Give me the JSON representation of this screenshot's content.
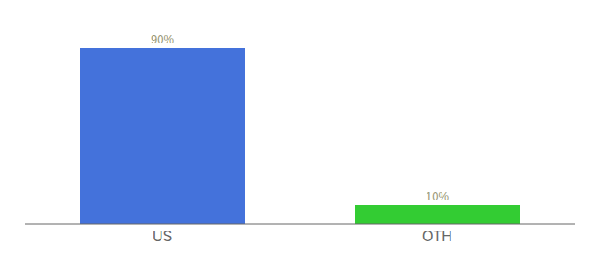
{
  "chart_data": {
    "type": "bar",
    "categories": [
      "US",
      "OTH"
    ],
    "values": [
      90,
      10
    ],
    "value_labels": [
      "90%",
      "10%"
    ],
    "colors": [
      "#4472db",
      "#33cc33"
    ],
    "data_labels": true,
    "ylim": [
      0,
      100
    ],
    "tick_labels": "x",
    "grid": false
  }
}
